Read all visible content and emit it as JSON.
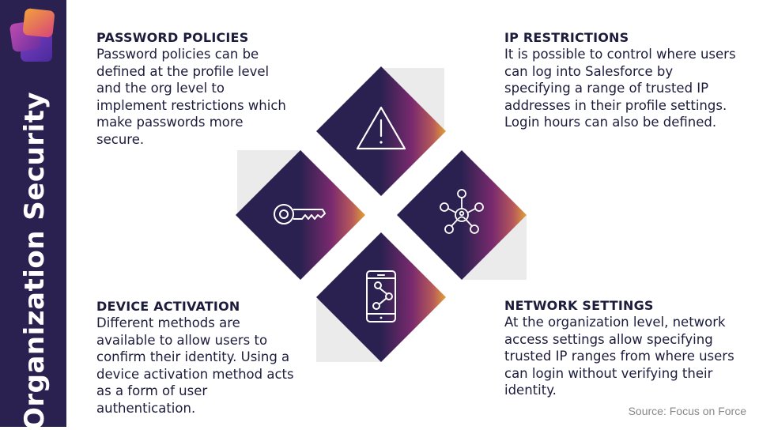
{
  "sidebar": {
    "title": "Organization Security"
  },
  "sections": {
    "top_left": {
      "title": "PASSWORD POLICIES",
      "body": "Password policies can be defined at the profile level and the org level to implement restrictions which make passwords more secure."
    },
    "top_right": {
      "title": "IP RESTRICTIONS",
      "body": "It is possible to control where users can log into Salesforce by specifying a range of trusted IP addresses in their profile settings. Login hours can also be defined."
    },
    "bottom_left": {
      "title": "DEVICE ACTIVATION",
      "body": "Different methods are available to allow users to confirm their identity. Using a device activation method acts as a form of user authentication."
    },
    "bottom_right": {
      "title": "NETWORK SETTINGS",
      "body": "At the organization level, network access settings allow specifying trusted IP ranges from where users can login without verifying their identity."
    }
  },
  "diagram": {
    "icons": [
      "warning-icon",
      "key-icon",
      "network-icon",
      "mobile-device-icon"
    ]
  },
  "source": "Source: Focus on Force",
  "colors": {
    "sidebar": "#2b2150",
    "diamond_dark": "#2b2150",
    "diamond_mid": "#7a2a6e",
    "diamond_accent": "#e0a038",
    "backdrop": "#ebebeb",
    "text": "#1c1c3c"
  }
}
